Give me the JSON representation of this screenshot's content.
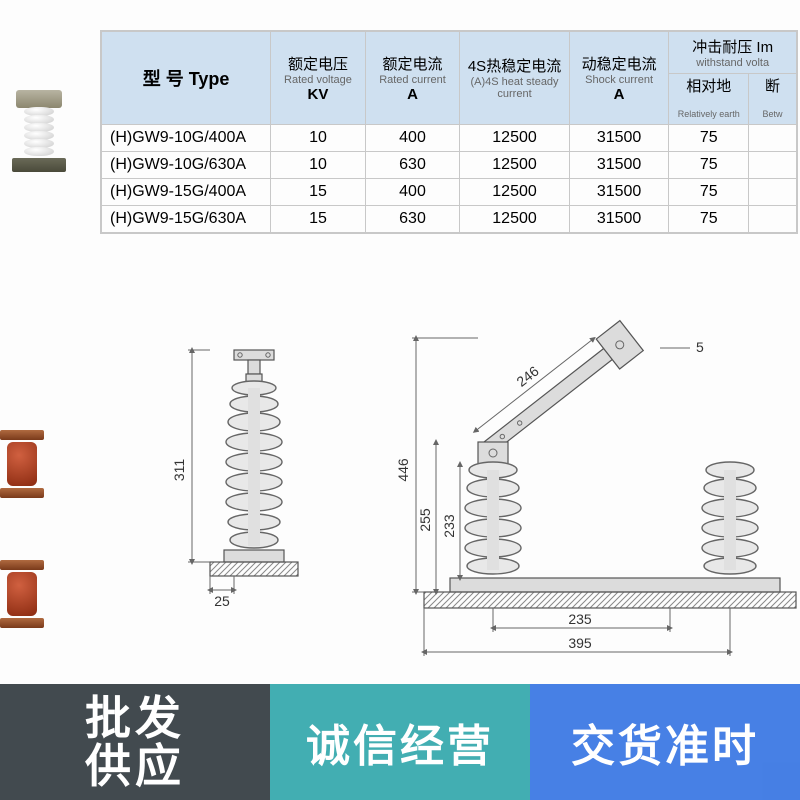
{
  "table": {
    "header_bg": "#cfe0f0",
    "border_color": "#c8c8c8",
    "columns": [
      {
        "cn": "型 号 Type",
        "en": "",
        "unit": ""
      },
      {
        "cn": "额定电压",
        "en": "Rated voltage",
        "unit": "KV"
      },
      {
        "cn": "额定电流",
        "en": "Rated current",
        "unit": "A"
      },
      {
        "cn": "4S热稳定电流",
        "en": "(A)4S heat steady current",
        "unit": ""
      },
      {
        "cn": "动稳定电流",
        "en": "Shock current",
        "unit": "A"
      },
      {
        "group_cn": "冲击耐压 Im",
        "group_en": "withstand volta",
        "sub": [
          {
            "cn": "相对地",
            "en": "Relatively earth"
          },
          {
            "cn": "断",
            "en": "Betw"
          }
        ]
      }
    ],
    "rows": [
      {
        "model": "(H)GW9-10G/400A",
        "kv": "10",
        "a": "400",
        "heat": "12500",
        "shock": "31500",
        "re": "75",
        "bw": ""
      },
      {
        "model": "(H)GW9-10G/630A",
        "kv": "10",
        "a": "630",
        "heat": "12500",
        "shock": "31500",
        "re": "75",
        "bw": ""
      },
      {
        "model": "(H)GW9-15G/400A",
        "kv": "15",
        "a": "400",
        "heat": "12500",
        "shock": "31500",
        "re": "75",
        "bw": ""
      },
      {
        "model": "(H)GW9-15G/630A",
        "kv": "15",
        "a": "630",
        "heat": "12500",
        "shock": "31500",
        "re": "75",
        "bw": ""
      }
    ]
  },
  "drawing": {
    "dims": {
      "left_h": "311",
      "left_base_w": "25",
      "right_arm": "246",
      "right_arm_small": "5",
      "right_total_h": "446",
      "right_insul_h": "255",
      "right_insul_h2": "233",
      "right_base_w1": "235",
      "right_base_w2": "395"
    }
  },
  "banners": {
    "left": "批发\n供应",
    "mid": "诚信经营",
    "right": "交货准时"
  }
}
